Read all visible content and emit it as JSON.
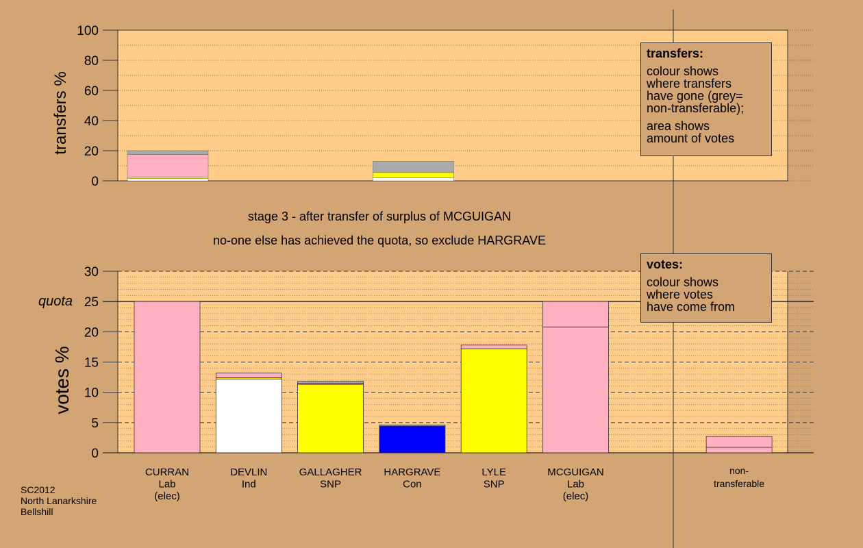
{
  "stage_title": "stage 3 - after transfer of surplus of MCGUIGAN",
  "stage_subtitle": "no-one else has achieved the quota, so exclude HARGRAVE",
  "footer": {
    "line1": "SC2012",
    "line2": "North Lanarkshire",
    "line3": "Bellshill"
  },
  "legend_transfers": {
    "title": "transfers:",
    "lines1": [
      "colour shows",
      "where transfers",
      "have gone (grey=",
      "non-transferable);"
    ],
    "lines2": [
      "area shows",
      "amount of votes"
    ]
  },
  "legend_votes": {
    "title": "votes:",
    "lines": [
      "colour shows",
      "where votes",
      "have come from"
    ]
  },
  "colors": {
    "Lab": "#ffb0c0",
    "Ind": "#ffffff",
    "SNP": "#ffff00",
    "Con": "#0000ff",
    "nontransferable": "#aaaaaa",
    "background": "#d4a574",
    "plot": "#ffcc8a"
  },
  "chart_data": [
    {
      "type": "bar",
      "ylabel": "transfers %",
      "ylim": [
        0,
        100
      ],
      "yticks": [
        0,
        20,
        40,
        60,
        80,
        100
      ],
      "categories": [
        "CURRAN",
        "DEVLIN",
        "GALLAGHER",
        "HARGRAVE",
        "LYLE",
        "MCGUIGAN"
      ],
      "bars": [
        {
          "category": "CURRAN",
          "segments": [
            {
              "party": "Ind",
              "value": 1.5
            },
            {
              "party": "SNP",
              "value": 1.0
            },
            {
              "party": "Lab",
              "value": 15.0
            },
            {
              "party": "nontransferable",
              "value": 2.5
            }
          ]
        },
        {
          "category": "HARGRAVE",
          "segments": [
            {
              "party": "Ind",
              "value": 2.0
            },
            {
              "party": "SNP",
              "value": 3.5
            },
            {
              "party": "nontransferable",
              "value": 7.5
            }
          ]
        }
      ]
    },
    {
      "type": "bar",
      "ylabel": "votes %",
      "ylim": [
        0,
        30
      ],
      "yticks": [
        0,
        5,
        10,
        15,
        20,
        25,
        30
      ],
      "quota": 25,
      "quota_label": "quota",
      "categories": [
        "CURRAN\nLab\n(elec)",
        "DEVLIN\nInd",
        "GALLAGHER\nSNP",
        "HARGRAVE\nCon",
        "LYLE\nSNP",
        "MCGUIGAN\nLab\n(elec)",
        "non-\ntransferable"
      ],
      "bars": [
        {
          "category": "CURRAN",
          "segments": [
            {
              "party": "Lab",
              "value": 25.0
            }
          ]
        },
        {
          "category": "DEVLIN",
          "segments": [
            {
              "party": "Ind",
              "value": 12.2
            },
            {
              "party": "SNP",
              "value": 0.2
            },
            {
              "party": "Lab",
              "value": 0.8
            }
          ]
        },
        {
          "category": "GALLAGHER",
          "segments": [
            {
              "party": "SNP",
              "value": 11.3
            },
            {
              "party": "Lab",
              "value": 0.2
            },
            {
              "party": "nontransferable",
              "value": 0.3
            }
          ]
        },
        {
          "category": "HARGRAVE",
          "segments": [
            {
              "party": "Con",
              "value": 4.4
            },
            {
              "party": "nontransferable",
              "value": 0.2
            }
          ]
        },
        {
          "category": "LYLE",
          "segments": [
            {
              "party": "SNP",
              "value": 17.2
            },
            {
              "party": "Lab",
              "value": 0.6
            }
          ]
        },
        {
          "category": "MCGUIGAN",
          "segments": [
            {
              "party": "Lab",
              "value": 20.8
            },
            {
              "party": "Lab",
              "value": 4.2
            }
          ]
        },
        {
          "category": "non-transferable",
          "segments": [
            {
              "party": "Lab",
              "value": 0.9
            },
            {
              "party": "Lab",
              "value": 1.8
            }
          ]
        }
      ]
    }
  ]
}
